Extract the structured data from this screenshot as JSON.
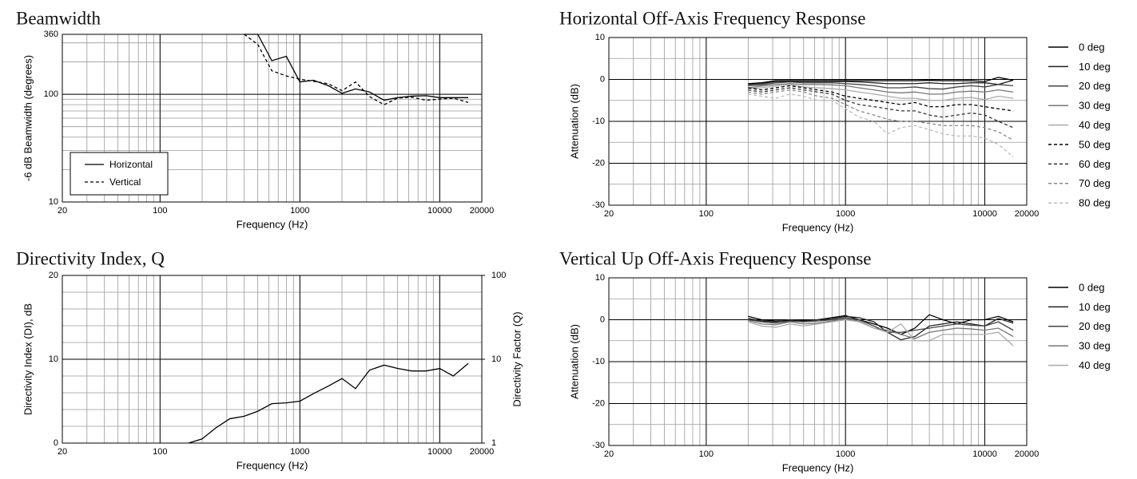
{
  "chart_data": [
    {
      "type": "line",
      "title": "Beamwidth",
      "xlabel": "Frequency (Hz)",
      "ylabel": "-6 dB Beamwidth (degrees)",
      "x": [
        400,
        500,
        630,
        800,
        1000,
        1250,
        1600,
        2000,
        2500,
        3150,
        4000,
        5000,
        6300,
        8000,
        10000,
        12500,
        16000
      ],
      "series": [
        {
          "name": "Horizontal",
          "color": "#000000",
          "dashed": false,
          "values": [
            360,
            360,
            205,
            225,
            130,
            135,
            120,
            102,
            112,
            105,
            88,
            93,
            96,
            97,
            93,
            93,
            93
          ]
        },
        {
          "name": "Vertical",
          "color": "#000000",
          "dashed": true,
          "values": [
            360,
            290,
            165,
            148,
            138,
            132,
            125,
            108,
            130,
            95,
            80,
            92,
            94,
            88,
            90,
            92,
            84
          ]
        }
      ],
      "xlim": [
        20,
        20000
      ],
      "xticks": [
        20,
        100,
        1000,
        10000,
        20000
      ],
      "ylim": [
        10,
        360
      ],
      "yticks": [
        10,
        100,
        360
      ],
      "log_x": true,
      "log_y": true,
      "grid": true,
      "legend": "lower left"
    },
    {
      "type": "line",
      "title": "Horizontal Off-Axis Frequency Response",
      "xlabel": "Frequency (Hz)",
      "ylabel": "Attenuation (dB)",
      "x": [
        200,
        250,
        315,
        400,
        500,
        630,
        800,
        1000,
        1250,
        1600,
        2000,
        2500,
        3150,
        4000,
        5000,
        6300,
        8000,
        10000,
        12500,
        16000
      ],
      "series": [
        {
          "name": "0 deg",
          "color": "#000000",
          "dashed": false,
          "values": [
            -1,
            -0.8,
            -0.3,
            -0.3,
            -0.3,
            -0.3,
            -0.3,
            -0.3,
            -0.3,
            -0.3,
            -0.3,
            -0.3,
            -0.3,
            -0.2,
            -0.3,
            -0.3,
            -0.3,
            -0.5,
            0.5,
            -0.2
          ]
        },
        {
          "name": "10 deg",
          "color": "#222222",
          "dashed": false,
          "values": [
            -1.2,
            -1,
            -0.5,
            -0.5,
            -0.5,
            -0.5,
            -0.5,
            -0.5,
            -0.6,
            -0.8,
            -1,
            -1,
            -1,
            -0.8,
            -1,
            -1,
            -0.8,
            -0.8,
            -1.2,
            -0.2
          ]
        },
        {
          "name": "20 deg",
          "color": "#444444",
          "dashed": false,
          "values": [
            -1.5,
            -1.3,
            -0.8,
            -0.6,
            -0.8,
            -0.8,
            -0.8,
            -1,
            -1.2,
            -1.5,
            -2,
            -2,
            -1.8,
            -2.2,
            -2.3,
            -1.8,
            -1.5,
            -1.8,
            -1.2,
            -1.5
          ]
        },
        {
          "name": "30 deg",
          "color": "#777777",
          "dashed": false,
          "values": [
            -2,
            -1.6,
            -1.2,
            -1,
            -1.2,
            -1.2,
            -1.3,
            -1.5,
            -2,
            -2.5,
            -3,
            -3.2,
            -3,
            -3.5,
            -3.5,
            -3,
            -2.8,
            -3,
            -2.5,
            -3
          ]
        },
        {
          "name": "40 deg",
          "color": "#aaaaaa",
          "dashed": false,
          "values": [
            -2.2,
            -2,
            -1.6,
            -1.2,
            -1.8,
            -2,
            -2.2,
            -2.5,
            -3,
            -3.5,
            -4,
            -4.5,
            -4.5,
            -5,
            -5,
            -4.5,
            -4.3,
            -4.8,
            -4,
            -4.5
          ]
        },
        {
          "name": "50 deg",
          "color": "#000000",
          "dashed": true,
          "values": [
            -2,
            -2.5,
            -2,
            -1.5,
            -2,
            -2.5,
            -3,
            -4,
            -4.5,
            -5,
            -5.5,
            -6,
            -5.5,
            -6.5,
            -6.5,
            -6,
            -6,
            -6.5,
            -7,
            -7.5
          ]
        },
        {
          "name": "60 deg",
          "color": "#333333",
          "dashed": true,
          "values": [
            -2.5,
            -3,
            -2.5,
            -2,
            -2.5,
            -3,
            -3.5,
            -5,
            -6,
            -6.5,
            -7,
            -7.5,
            -7.5,
            -8.5,
            -9,
            -8.5,
            -8,
            -8.5,
            -10,
            -11.5
          ]
        },
        {
          "name": "70 deg",
          "color": "#888888",
          "dashed": true,
          "values": [
            -3,
            -3.5,
            -3,
            -2.5,
            -3,
            -4,
            -4.5,
            -6,
            -7.5,
            -8.5,
            -9.5,
            -10,
            -10,
            -10.5,
            -11,
            -11,
            -11,
            -11.5,
            -12.5,
            -14.5
          ]
        },
        {
          "name": "80 deg",
          "color": "#bbbbbb",
          "dashed": true,
          "values": [
            -3.5,
            -4,
            -4.5,
            -3.5,
            -4,
            -5,
            -5,
            -7,
            -9,
            -10,
            -13,
            -11.5,
            -11,
            -12,
            -13,
            -13.5,
            -13.5,
            -14,
            -15.5,
            -18.5
          ]
        }
      ],
      "xlim": [
        20,
        20000
      ],
      "xticks": [
        20,
        100,
        1000,
        10000,
        20000
      ],
      "ylim": [
        -30,
        10
      ],
      "yticks": [
        -30,
        -20,
        -10,
        0,
        10
      ],
      "log_x": true,
      "log_y": false,
      "grid": true,
      "legend": "outside right"
    },
    {
      "type": "line",
      "title": "Directivity Index, Q",
      "xlabel": "Frequency (Hz)",
      "ylabel": "Directivity Index (DI), dB",
      "y2label": "Directivity Factor (Q)",
      "x": [
        160,
        200,
        250,
        315,
        400,
        500,
        630,
        800,
        1000,
        1250,
        1600,
        2000,
        2500,
        3150,
        4000,
        5000,
        6300,
        8000,
        10000,
        12500,
        16000
      ],
      "series": [
        {
          "name": "DI",
          "color": "#000000",
          "dashed": false,
          "values": [
            0,
            0.5,
            1.8,
            2.9,
            3.2,
            3.8,
            4.7,
            4.8,
            5,
            5.9,
            6.8,
            7.7,
            6.5,
            8.7,
            9.3,
            8.9,
            8.6,
            8.6,
            8.9,
            8,
            9.5
          ]
        }
      ],
      "xlim": [
        20,
        20000
      ],
      "xticks": [
        20,
        100,
        1000,
        10000,
        20000
      ],
      "ylim": [
        0,
        20
      ],
      "yticks": [
        0,
        10,
        20
      ],
      "y2lim": [
        1,
        100
      ],
      "y2ticks": [
        1,
        10,
        100
      ],
      "log_x": true,
      "log_y": false,
      "log_y2": true,
      "grid": true
    },
    {
      "type": "line",
      "title": "Vertical Up Off-Axis Frequency Response",
      "xlabel": "Frequency (Hz)",
      "ylabel": "Attenuation (dB)",
      "x": [
        200,
        250,
        315,
        400,
        500,
        630,
        800,
        1000,
        1250,
        1600,
        2000,
        2500,
        3150,
        4000,
        5000,
        6300,
        8000,
        10000,
        12500,
        16000
      ],
      "series": [
        {
          "name": "0 deg",
          "color": "#000000",
          "dashed": false,
          "values": [
            0.8,
            0,
            -0.3,
            -0.2,
            -0.2,
            0,
            0.5,
            1,
            0,
            -1,
            -2,
            -3.5,
            -2,
            1.2,
            0,
            -1,
            0,
            0,
            0.8,
            -0.5
          ]
        },
        {
          "name": "10 deg",
          "color": "#222222",
          "dashed": false,
          "values": [
            0.3,
            -0.3,
            -0.5,
            0,
            -0.3,
            0,
            0.3,
            0.8,
            0.5,
            -0.5,
            -3,
            -4.8,
            -4,
            -1.5,
            -1,
            -0.5,
            -1,
            -1.5,
            0.3,
            -0.8
          ]
        },
        {
          "name": "20 deg",
          "color": "#444444",
          "dashed": false,
          "values": [
            0,
            -0.5,
            -0.8,
            -0.3,
            -0.5,
            -0.3,
            0,
            0.5,
            0,
            -1.5,
            -3,
            -3,
            -2.5,
            -2,
            -1.5,
            -1,
            -1.3,
            -1.5,
            -0.5,
            -2.5
          ]
        },
        {
          "name": "30 deg",
          "color": "#777777",
          "dashed": false,
          "values": [
            -0.2,
            -1,
            -1.2,
            -0.5,
            -1,
            -0.8,
            -0.3,
            0.3,
            -0.3,
            -2,
            -2.5,
            -3.5,
            -4.5,
            -3,
            -2.5,
            -2,
            -2.2,
            -2.5,
            -2,
            -4
          ]
        },
        {
          "name": "40 deg",
          "color": "#aaaaaa",
          "dashed": false,
          "values": [
            -0.5,
            -1.5,
            -1.8,
            -1,
            -1.5,
            -1,
            -0.5,
            0,
            -0.5,
            -2,
            -3,
            -1,
            -5,
            -5,
            -3.5,
            -3.5,
            -3.5,
            -3.5,
            -3,
            -6.2
          ]
        }
      ],
      "xlim": [
        20,
        20000
      ],
      "xticks": [
        20,
        100,
        1000,
        10000,
        20000
      ],
      "ylim": [
        -30,
        10
      ],
      "yticks": [
        -30,
        -20,
        -10,
        0,
        10
      ],
      "log_x": true,
      "log_y": false,
      "grid": true,
      "legend": "outside right"
    }
  ]
}
